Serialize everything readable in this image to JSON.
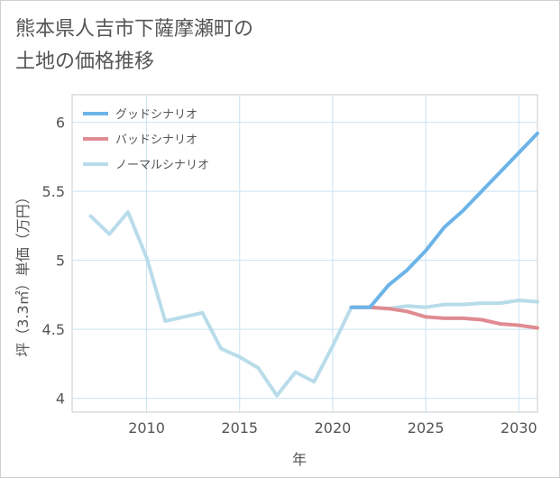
{
  "chart_data": {
    "type": "line",
    "title_lines": [
      "熊本県人吉市下薩摩瀬町の",
      "土地の価格推移"
    ],
    "xlabel": "年",
    "ylabel": "坪（3.3㎡）単価（万円）",
    "xlim": [
      2006,
      2031
    ],
    "ylim": [
      3.9,
      6.2
    ],
    "x_ticks": [
      2010,
      2015,
      2020,
      2025,
      2030
    ],
    "y_ticks": [
      4,
      4.5,
      5,
      5.5,
      6
    ],
    "y_tick_labels": [
      "4",
      "4.5",
      "5",
      "5.5",
      "6"
    ],
    "grid": true,
    "legend_position": "top-left",
    "series": [
      {
        "name": "グッドシナリオ",
        "color": "#6cb4e8",
        "x": [
          2021,
          2022,
          2023,
          2024,
          2025,
          2026,
          2027,
          2028,
          2029,
          2030,
          2031
        ],
        "values": [
          4.66,
          4.66,
          4.82,
          4.93,
          5.07,
          5.24,
          5.36,
          5.5,
          5.64,
          5.78,
          5.92
        ]
      },
      {
        "name": "バッドシナリオ",
        "color": "#e08b92",
        "x": [
          2021,
          2022,
          2023,
          2024,
          2025,
          2026,
          2027,
          2028,
          2029,
          2030,
          2031
        ],
        "values": [
          4.66,
          4.66,
          4.65,
          4.63,
          4.59,
          4.58,
          4.58,
          4.57,
          4.54,
          4.53,
          4.51
        ]
      },
      {
        "name": "ノーマルシナリオ",
        "color": "#b9dcea",
        "x": [
          2007,
          2008,
          2009,
          2010,
          2011,
          2012,
          2013,
          2014,
          2015,
          2016,
          2017,
          2018,
          2019,
          2020,
          2021,
          2022,
          2023,
          2024,
          2025,
          2026,
          2027,
          2028,
          2029,
          2030,
          2031
        ],
        "values": [
          5.32,
          5.19,
          5.35,
          5.02,
          4.56,
          4.59,
          4.62,
          4.36,
          4.3,
          4.22,
          4.02,
          4.19,
          4.12,
          4.38,
          4.66,
          4.66,
          4.65,
          4.67,
          4.66,
          4.68,
          4.68,
          4.69,
          4.69,
          4.71,
          4.7
        ]
      }
    ]
  }
}
